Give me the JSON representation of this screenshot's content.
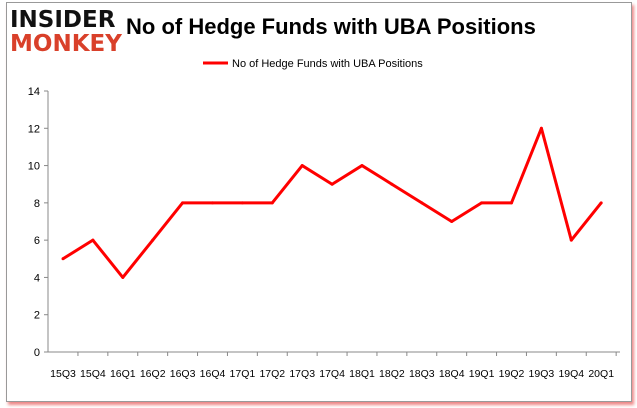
{
  "logo": {
    "line1": "INSIDER",
    "line2": "MONKEY"
  },
  "chart_data": {
    "type": "line",
    "title": "No of Hedge Funds with UBA Positions",
    "legend": "No of Hedge Funds with UBA Positions",
    "legend_position": "top",
    "categories": [
      "15Q3",
      "15Q4",
      "16Q1",
      "16Q2",
      "16Q3",
      "16Q4",
      "17Q1",
      "17Q2",
      "17Q3",
      "17Q4",
      "18Q1",
      "18Q2",
      "18Q3",
      "18Q4",
      "19Q1",
      "19Q2",
      "19Q3",
      "19Q4",
      "20Q1"
    ],
    "series": [
      {
        "name": "No of Hedge Funds with UBA Positions",
        "values": [
          5,
          6,
          4,
          6,
          8,
          8,
          8,
          8,
          10,
          9,
          10,
          9,
          8,
          7,
          8,
          8,
          12,
          6,
          8
        ],
        "color": "#ff0000"
      }
    ],
    "ylim": [
      0,
      14
    ],
    "yticks": [
      0,
      2,
      4,
      6,
      8,
      10,
      12,
      14
    ],
    "grid": false,
    "xlabel": "",
    "ylabel": ""
  }
}
